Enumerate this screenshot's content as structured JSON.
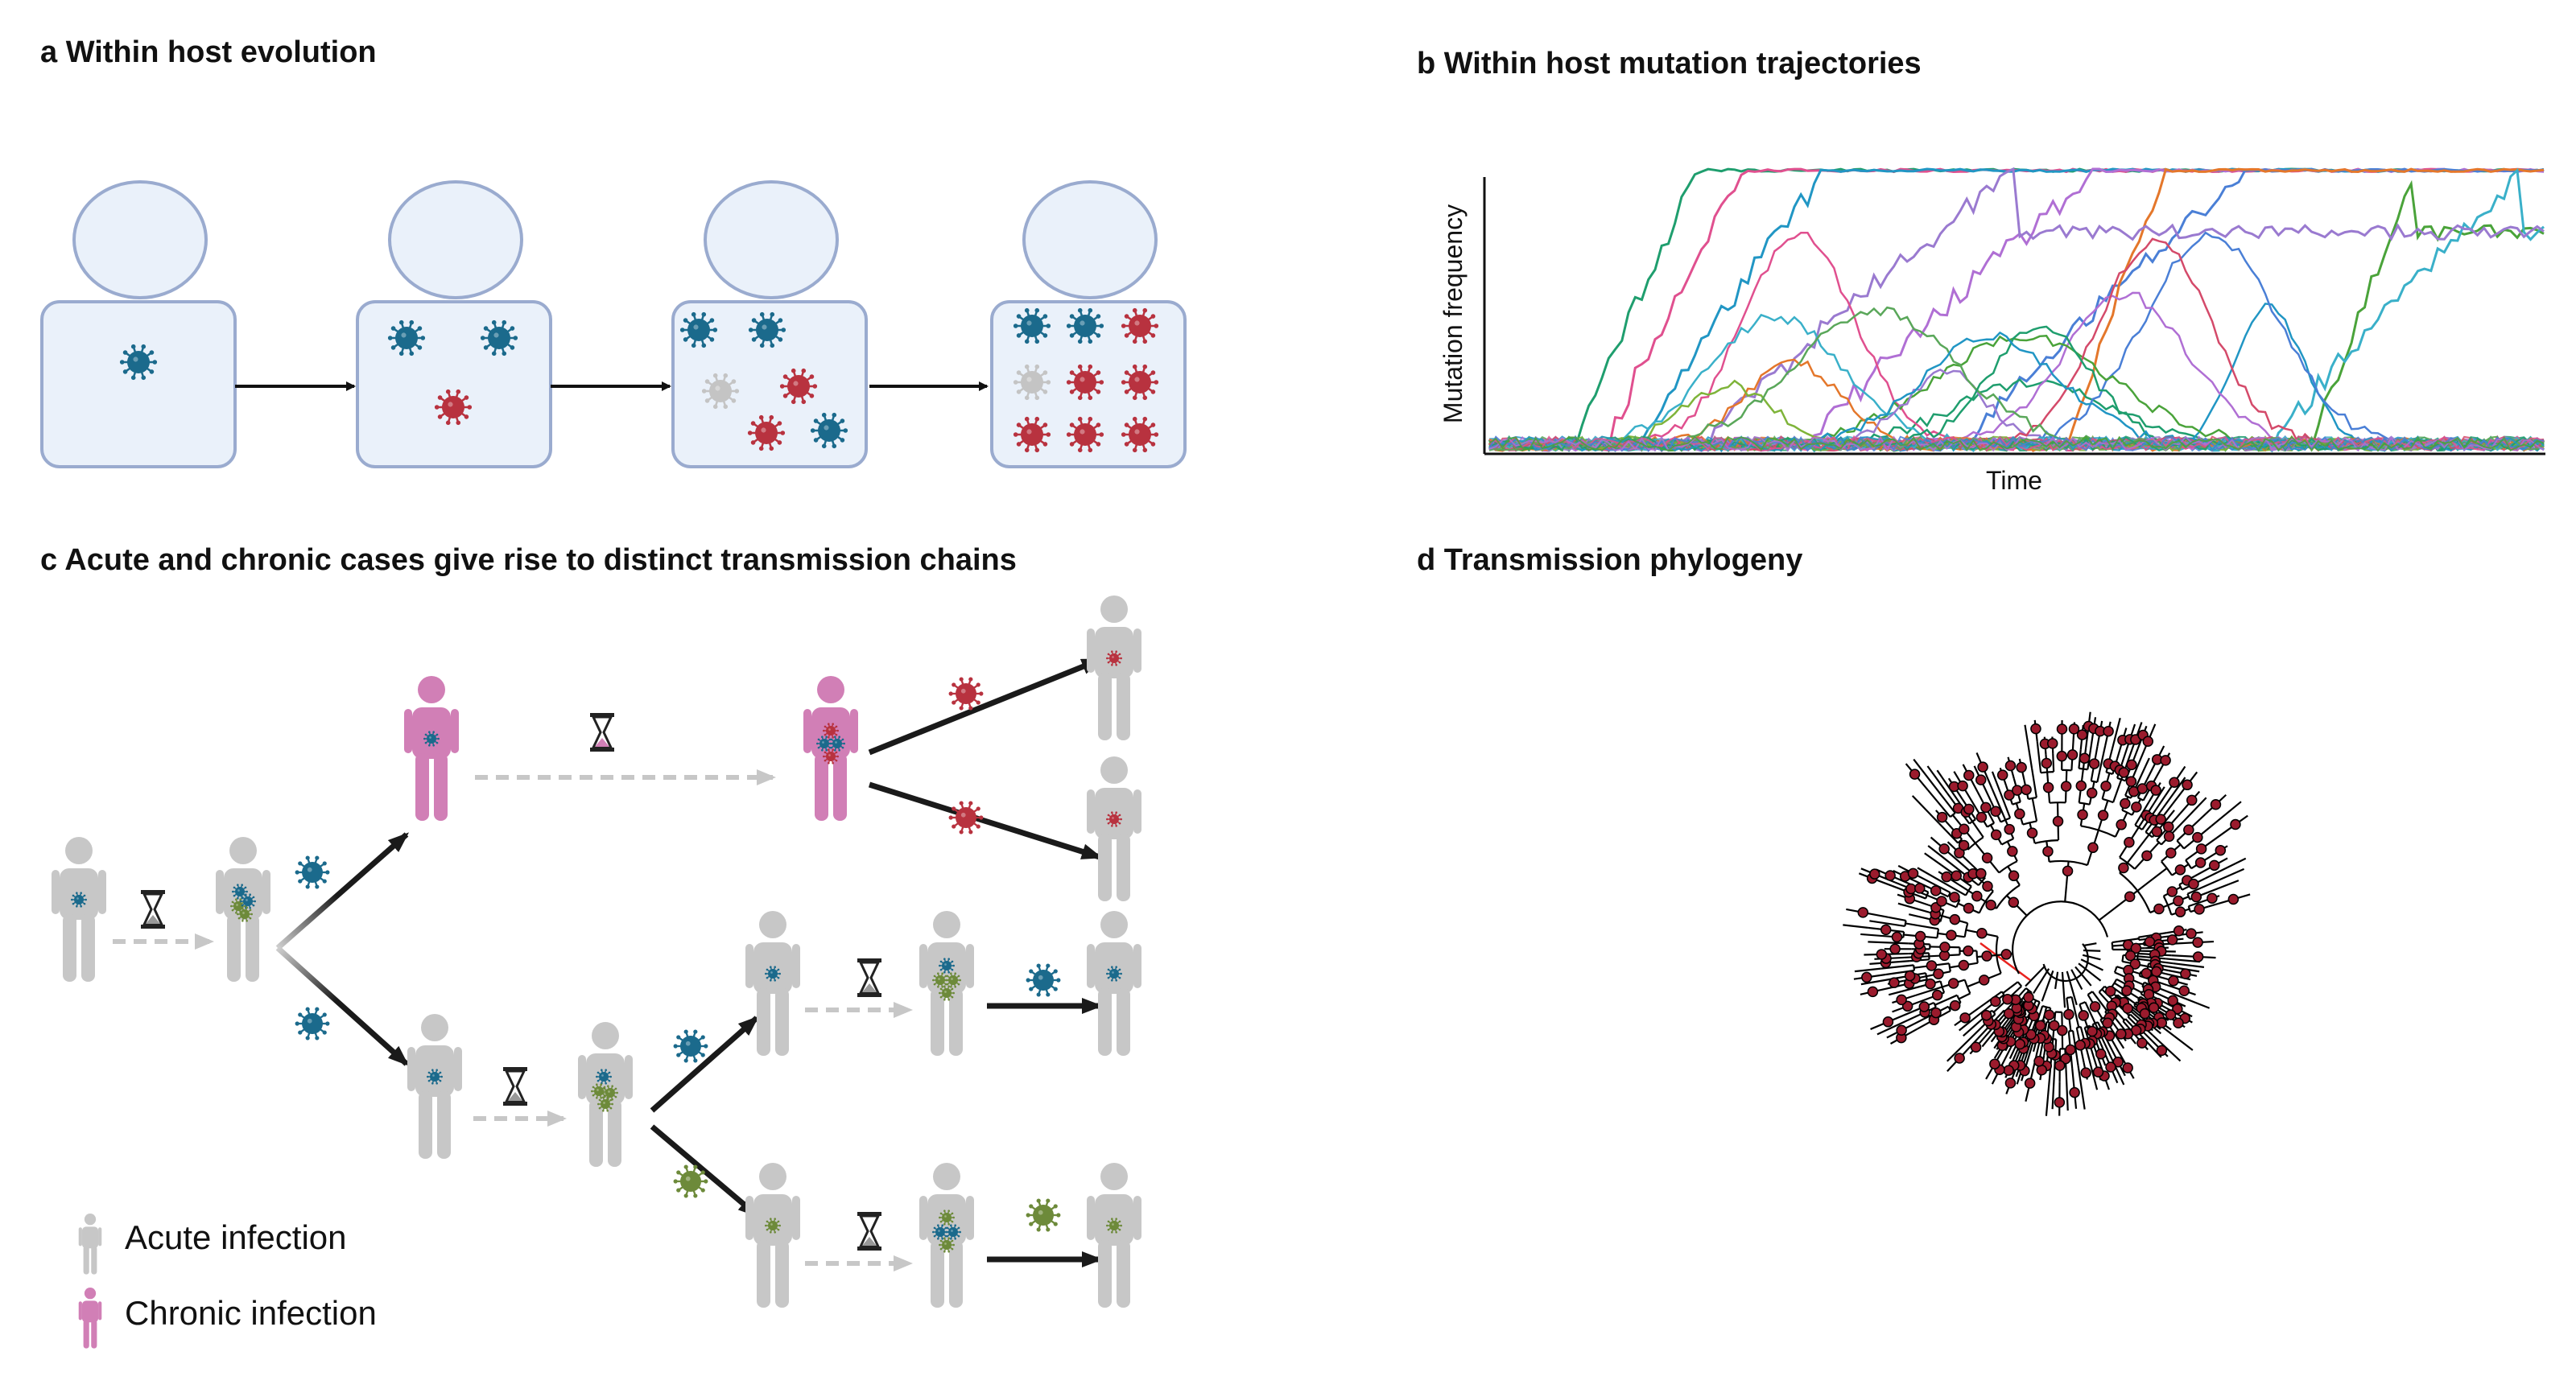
{
  "panels": {
    "a": {
      "title": "a  Within host evolution"
    },
    "b": {
      "title": "b Within host mutation trajectories"
    },
    "c": {
      "title": "c Acute and chronic cases give rise to distinct transmission chains"
    },
    "d": {
      "title": "d Transmission phylogeny"
    }
  },
  "colors": {
    "blue_virus": "#1b6a8c",
    "red_virus": "#b8323f",
    "grey_virus": "#c4c4c4",
    "green_virus": "#6d8a3a",
    "acute_person": "#c7c7c7",
    "chronic_person": "#d17fb6",
    "host_fill": "#eaf1fa",
    "host_stroke": "#9aabcf",
    "tree_line": "#000000",
    "tree_root": "#e8231f",
    "tree_node": "#9b1b2d"
  },
  "legend": {
    "acute": "Acute infection",
    "chronic": "Chronic infection"
  },
  "chart_data": {
    "type": "line",
    "title": "",
    "xlabel": "Time",
    "ylabel": "Mutation frequency",
    "ylim": [
      0,
      1
    ],
    "grid": false,
    "legend": "none"
  }
}
